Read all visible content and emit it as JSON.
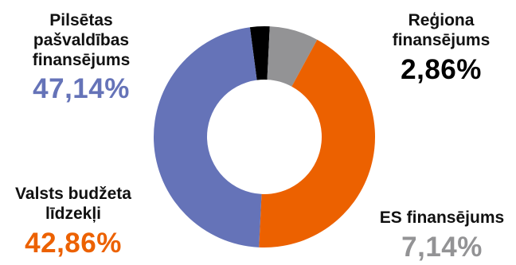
{
  "chart_data": {
    "type": "pie",
    "donut": true,
    "slices": [
      {
        "name_lines": [
          "Reģiona",
          "finansējums"
        ],
        "value": 2.86,
        "label": "2,86%",
        "color": "#000000"
      },
      {
        "name_lines": [
          "ES finansējums"
        ],
        "value": 7.14,
        "label": "7,14%",
        "color": "#939395"
      },
      {
        "name_lines": [
          "Valsts budžeta",
          "līdzekļi"
        ],
        "value": 42.86,
        "label": "42,86%",
        "color": "#ec6100"
      },
      {
        "name_lines": [
          "Pilsētas",
          "pašvaldības",
          "finansējums"
        ],
        "value": 47.14,
        "label": "47,14%",
        "color": "#6573b8"
      }
    ],
    "start_angle_deg": -7.5,
    "direction": "clockwise",
    "labels_colored_by_slice": [
      false,
      true,
      true,
      true
    ]
  }
}
